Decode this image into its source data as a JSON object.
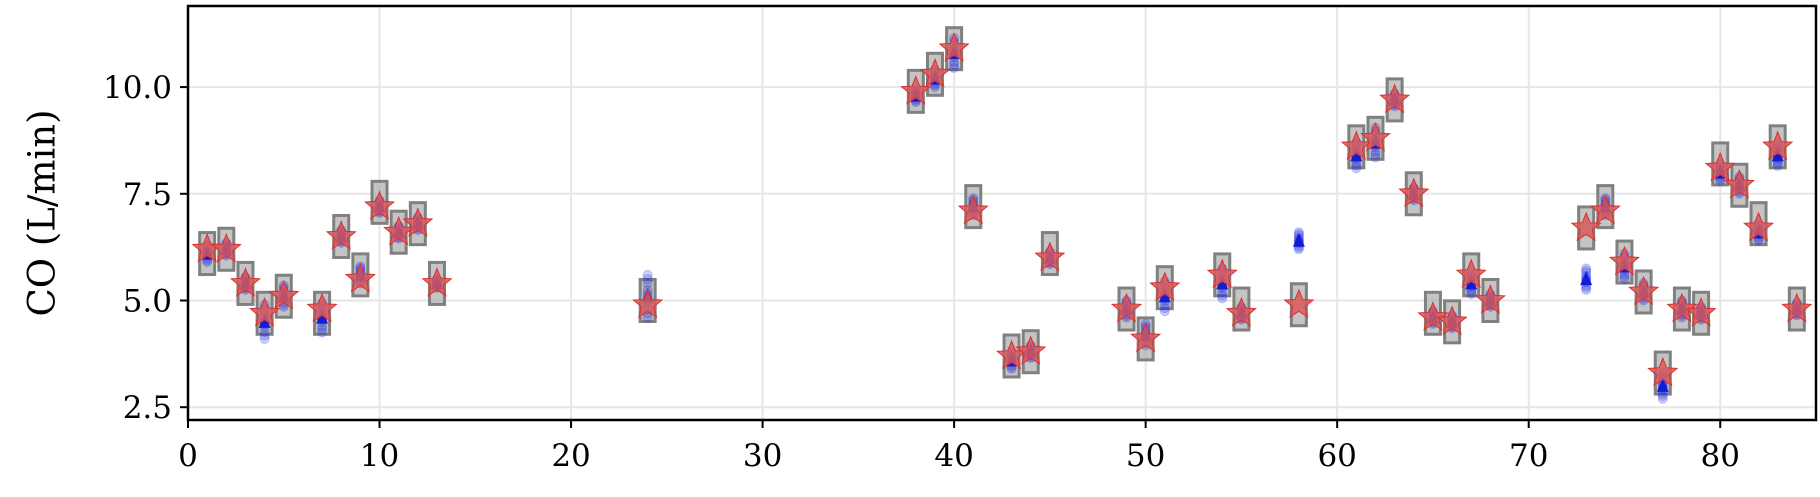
{
  "chart_data": {
    "type": "scatter",
    "title": "",
    "xlabel": "",
    "ylabel": "CO (L/min)",
    "xlim": [
      0,
      85
    ],
    "ylim": [
      2.2,
      11.9
    ],
    "xticks": [
      0,
      10,
      20,
      30,
      40,
      50,
      60,
      70,
      80
    ],
    "yticks": [
      2.5,
      5.0,
      7.5,
      10.0
    ],
    "xtick_labels": [
      "0",
      "10",
      "20",
      "30",
      "40",
      "50",
      "60",
      "70",
      "80"
    ],
    "ytick_labels": [
      "2.5",
      "5.0",
      "7.5",
      "10.0"
    ],
    "grid": true,
    "legend": null,
    "colors": {
      "reference_star": "#d95a5a",
      "box": "#808080",
      "sample": "#1f2ee0",
      "mean": "#0a14d8",
      "grid": "#e6e6e6"
    },
    "series": [
      {
        "marker": "star",
        "x": [
          1,
          2,
          3,
          4,
          5,
          7,
          8,
          9,
          10,
          11,
          12,
          13,
          24,
          38,
          39,
          40,
          41,
          43,
          44,
          45,
          49,
          50,
          51,
          54,
          55,
          58,
          61,
          62,
          63,
          64,
          65,
          66,
          67,
          68,
          73,
          74,
          75,
          76,
          77,
          78,
          79,
          80,
          81,
          82,
          83,
          84
        ],
        "y": [
          6.2,
          6.2,
          5.4,
          4.7,
          5.1,
          4.8,
          6.5,
          5.5,
          7.2,
          6.6,
          6.8,
          5.4,
          4.9,
          9.9,
          10.3,
          10.9,
          7.1,
          3.7,
          3.8,
          6.0,
          4.8,
          4.1,
          5.3,
          5.6,
          4.7,
          4.9,
          8.6,
          8.8,
          9.7,
          7.5,
          4.6,
          4.5,
          5.6,
          5.0,
          6.7,
          7.1,
          5.9,
          5.2,
          3.3,
          4.8,
          4.7,
          8.1,
          7.7,
          6.7,
          8.6,
          4.8
        ]
      },
      {
        "marker": "square",
        "x": [
          1,
          2,
          3,
          4,
          5,
          7,
          8,
          9,
          10,
          11,
          12,
          13,
          24,
          38,
          39,
          40,
          41,
          43,
          44,
          45,
          49,
          50,
          51,
          54,
          55,
          58,
          61,
          62,
          63,
          64,
          65,
          66,
          67,
          68,
          73,
          74,
          75,
          76,
          77,
          78,
          79,
          80,
          81,
          82,
          83,
          84
        ],
        "y": [
          6.1,
          6.2,
          5.4,
          4.7,
          5.1,
          4.7,
          6.5,
          5.6,
          7.3,
          6.6,
          6.8,
          5.4,
          5.0,
          9.9,
          10.3,
          10.9,
          7.2,
          3.7,
          3.8,
          6.1,
          4.8,
          4.1,
          5.3,
          5.6,
          4.8,
          4.9,
          8.6,
          8.8,
          9.7,
          7.5,
          4.7,
          4.5,
          5.6,
          5.0,
          6.7,
          7.2,
          5.9,
          5.2,
          3.3,
          4.8,
          4.7,
          8.2,
          7.7,
          6.8,
          8.6,
          4.8
        ]
      },
      {
        "marker": "dot",
        "x": [
          1,
          2,
          3,
          4,
          5,
          7,
          8,
          9,
          10,
          11,
          12,
          13,
          24,
          38,
          39,
          40,
          41,
          43,
          44,
          45,
          49,
          50,
          51,
          54,
          55,
          58,
          61,
          62,
          63,
          64,
          65,
          66,
          67,
          68,
          73,
          74,
          75,
          76,
          77,
          78,
          79,
          80,
          81,
          82,
          83,
          84
        ],
        "y": [
          6.1,
          6.2,
          5.4,
          4.5,
          5.1,
          4.6,
          6.5,
          5.6,
          7.2,
          6.6,
          6.8,
          5.4,
          5.1,
          9.8,
          10.2,
          10.8,
          7.2,
          3.6,
          3.8,
          6.0,
          4.8,
          4.2,
          5.1,
          5.4,
          4.7,
          6.4,
          8.4,
          8.7,
          9.7,
          7.5,
          4.6,
          4.5,
          5.4,
          5.0,
          5.5,
          7.2,
          5.8,
          5.2,
          3.0,
          4.8,
          4.7,
          8.0,
          7.7,
          6.6,
          8.4,
          4.8
        ],
        "spread": [
          0.2,
          0.15,
          0.15,
          0.4,
          0.25,
          0.35,
          0.15,
          0.2,
          0.15,
          0.15,
          0.15,
          0.1,
          0.5,
          0.15,
          0.2,
          0.35,
          0.2,
          0.2,
          0.15,
          0.15,
          0.2,
          0.25,
          0.35,
          0.35,
          0.15,
          0.2,
          0.3,
          0.35,
          0.15,
          0.15,
          0.15,
          0.15,
          0.25,
          0.15,
          0.25,
          0.2,
          0.3,
          0.2,
          0.3,
          0.2,
          0.15,
          0.2,
          0.2,
          0.2,
          0.25,
          0.15
        ]
      }
    ]
  }
}
